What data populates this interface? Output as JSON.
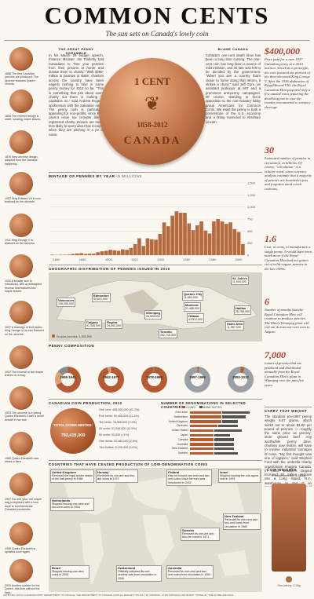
{
  "header": {
    "title": "COMMON CENTS",
    "subtitle": "The sun sets on Canada's lowly coin"
  },
  "coin_captions": [
    "1858 The first Canadian pennies are produced. The obverse features Queen Victoria.",
    "1859 The reverse design is wider, wearing maple leaves.",
    "1876 New obverse design, adapted from the Jamaica halfpenny.",
    "1902 King Edward VII is now featured on the obverse.",
    "1911 King George V is featured on the obverse.",
    "1920 A smaller size is introduced, with a redesigned reverse that features two maple leaves.",
    "1937 A redesign of both sides; King George VI is now featured on the obverse.",
    "1937 The reverse is two maple leaves on a twig.",
    "1953 The obverse is a young Queen Elizabeth II with a laurel wreath in her hair.",
    "1965 Queen Elizabeth now wears a tiara.",
    "1967 For one year, the maple twig is replaced with a rock dove to commemorate Canada's centennial.",
    "1990 Queen Elizabeth is updated once again.",
    "2003 Another update for the Queen, this time without the tiara."
  ],
  "scramble": {
    "title": "THE GREAT PENNY SCRAMBLE",
    "text": "In his March 29 budget speech, Finance Minister Jim Flaherty told Canadians to \"free your pennies from their prisons at home and donate them to charity.\" With $350-million in pennies in stake, charities across the country have been eagerly rushing to rake in some penny money for 2013 so far. \"This is something that just about every charity out there is looking to capitalize on,\" said Andrew Rogers, spokesman with the Salvation Army. The penny rush is particularly appealing for non-profits, since they cannot issue tax receipts like a registered charity. Donors are much less likely to worry about tax receipts when they are pitching in a jar of coins."
  },
  "blame": {
    "title": "BLAME CANADA",
    "text": "Canada's one-cent death blow has been a long time coming. The one-cent coin has long been a source of mild irritation, and its fate was left to be decided by the government. \"When you see a country that's closer to home doing that reform, it strikes a chord,\" said Jeff Gore, an assistant professor at MIT and a prominent anti-penny campaigner. Of course, standing in fierce opposition to the one-industry lobby group Americans for Common Cents. We insist the penny is both a cornerstone of the U.S. economy and a fitting memorial to Abraham Lincoln."
  },
  "big_coin": {
    "line1": "1 CENT",
    "line2": "1858-2012",
    "line3": "CANADA"
  },
  "sidebar": [
    {
      "big": "$400,000",
      "text": "Price paid for a rare 1937 Canadian penny at a 2010 auction. Struck as a prototype, the coin featured the portrait of the then-deceased King George V. After the 1936 abdication of King Edward VIII, the Royal Canadian Mint prepared only a few unused coins featuring the dead king just in case the country encountered a currency shortage."
    },
    {
      "big": "30",
      "text": "Estimated number of pennies in circulation, in billions. Of course, \"circulation\" is a relative word, since currency analysts estimate that a majority of pennies are hoarded in jars and forgotten amid couch cushions."
    },
    {
      "big": "1.6",
      "text": "Cost, in cents, to manufacture a single penny. It would have been much more if the Royal Canadian Mint had not gotten rid of solid-copper pennies in the late 1990s."
    },
    {
      "big": "6",
      "text": "Number of months that the Royal Canadian Mint will continue to produce pennies. The Mint's Winnipeg plant will roll out its last one-cent coin in August."
    },
    {
      "big": "7,000",
      "text": "tonnes of pennies that are produced and distributed annually from the Royal Canadian Mint's plant in Winnipeg over the past five years."
    }
  ],
  "carry": {
    "title": "CARRY THAT WEIGHT",
    "text": "The standard pre-1997 penny weighs 5.67 grams, which works out to about $1.80 per pound of pennies — roughly the same price as grocery-store ground beef. Any worthwhile penny drive, charities now realize, will have to involve industrial tonnages of coins. \"My first thought was one of logistics,\" said Stephen Ford with the umbrella charity organization Imagine Canada. In 1914, Boulder's Dugout recruited 65 million pennies into a Long Island, N.Y., warehouse as part of an innovative direct mail campaign. By meeting, the floor had collapsed."
  },
  "mintage": {
    "title": "MINTAGE OF PENNIES BY YEAR",
    "unit": "IN MILLIONS",
    "ticks": [
      "1,500",
      "1,250",
      "1,000",
      "750",
      "500",
      "250",
      "0"
    ],
    "years": [
      "1860",
      "1880",
      "1900",
      "1920",
      "1940",
      "1960",
      "1980",
      "2000"
    ]
  },
  "chart_data": {
    "type": "bar",
    "title": "MINTAGE OF PENNIES BY YEAR",
    "ylabel": "IN MILLIONS",
    "ylim": [
      0,
      1500
    ],
    "categories": [
      "1858",
      "1870",
      "1880",
      "1890",
      "1900",
      "1910",
      "1915",
      "1920",
      "1925",
      "1930",
      "1935",
      "1940",
      "1942",
      "1945",
      "1948",
      "1950",
      "1952",
      "1955",
      "1958",
      "1960",
      "1962",
      "1964",
      "1966",
      "1967",
      "1968",
      "1970",
      "1972",
      "1974",
      "1976",
      "1978",
      "1980",
      "1982",
      "1984",
      "1986",
      "1988",
      "1990",
      "1992",
      "1994",
      "1996",
      "1998",
      "2000",
      "2002",
      "2004",
      "2006",
      "2008",
      "2010",
      "2012"
    ],
    "values": [
      10,
      5,
      8,
      10,
      12,
      25,
      35,
      40,
      25,
      30,
      30,
      60,
      80,
      90,
      110,
      100,
      90,
      120,
      110,
      150,
      230,
      350,
      190,
      350,
      330,
      320,
      440,
      680,
      600,
      820,
      910,
      880,
      880,
      660,
      520,
      620,
      700,
      510,
      450,
      700,
      750,
      700,
      650,
      680,
      540,
      480,
      230
    ]
  },
  "geo": {
    "title": "GEOGRAPHIC DISTRIBUTION OF PENNIES ISSUED IN 2010",
    "legend": "Surplus pennies: 1,955,500",
    "cities": [
      {
        "name": "Vancouver",
        "value": "106,250,000"
      },
      {
        "name": "Edmonton",
        "value": "52,621,000"
      },
      {
        "name": "Calgary",
        "value": "91,345,000"
      },
      {
        "name": "Regina",
        "value": "24,250,000"
      },
      {
        "name": "Winnipeg",
        "value": "26,500,000"
      },
      {
        "name": "Quebec City",
        "value": "11,650,000"
      },
      {
        "name": "Montreal",
        "value": "21,485,000"
      },
      {
        "name": "Ottawa",
        "value": "47,912,000"
      },
      {
        "name": "Toronto",
        "value": "252,715,000"
      },
      {
        "name": "St. John's",
        "value": "11,918,000"
      },
      {
        "name": "Halifax",
        "value": "26,798,000"
      },
      {
        "name": "Saint John",
        "value": "11,967,000"
      }
    ]
  },
  "composition": {
    "title": "PENNY COMPOSITION",
    "eras": [
      "1908-1941",
      "1942-1977",
      "1978-1996",
      "1997-1999",
      "2000-2012"
    ]
  },
  "production": {
    "title": "CANADIAN COIN PRODUCTION, 2010",
    "total_label": "TOTAL COINS MINTED:",
    "total": "792,415,000",
    "rows": [
      "One cent: 486,000,000 (61.3%)",
      "Five cents: 90,450,000 (11.4%)",
      "Ten cents: 78,505,000 (9.9%)",
      "25 cents: 91,340,000 (11.5%)",
      "50 cents: 50,000 (<1%)",
      "One dollar: 20,965,000 (2.6%)",
      "Two dollars: 5,150,000 (0.6%)"
    ]
  },
  "denoms": {
    "title": "NUMBER OF DENOMINATIONS IN SELECTED COUNTRIES",
    "coins_label": "COINS",
    "notes_label": "BANK NOTES",
    "countries": [
      "Euro zone",
      "Switzerland",
      "United Kingdom",
      "Denmark",
      "United States",
      "Japan",
      "Canada",
      "Australia",
      "New Zealand",
      "Sweden"
    ]
  },
  "ceased": {
    "title": "COUNTRIES THAT HAVE CEASED PRODUCTION OF LOW-DENOMINATION COINS",
    "items": [
      {
        "country": "United Kingdom",
        "text": "Removed the legal tender status of the half-penny in 1984"
      },
      {
        "country": "Norway",
        "text": "Removed its one-øre and two-øre coins in 1972"
      },
      {
        "country": "Finland",
        "text": "Has not issued one-cent and two-cent coins since the euro was introduced in 2002"
      },
      {
        "country": "Israel",
        "text": "Stopped issuing the one-agora coin in 1991"
      },
      {
        "country": "Netherlands",
        "text": "Stopped issuing one-cent and two-cent coins in 2004"
      },
      {
        "country": "New Zealand",
        "text": "Removed its one-cent and two-cent coins from circulation in 1989"
      },
      {
        "country": "Sweden",
        "text": "Removed its one-öre and two-öre coins in 1971"
      },
      {
        "country": "Brazil",
        "text": "Stopped issuing one-cent coins in 2004"
      },
      {
        "country": "Switzerland",
        "text": "Officially withdrew its one-centime coin from circulation in 2006"
      },
      {
        "country": "Australia",
        "text": "Removed its one-cent and two-cent coins from circulation in 1992"
      }
    ]
  },
  "weights": {
    "title": "COIN WEIGHTS",
    "top": "1 million pennies: 2,350kg",
    "bottom": "One penny: 2.35g"
  },
  "footer": "SOURCES: ROYAL CANADIAN MINT; DEPARTMENT OF FINANCE; THE DEPARTMENT OF FINANCE (ANNUAL BUDGET) ON JULY 24; GRAPHIC: JOHN SOPINSKI AND MURAT YÜKSELIR / THE GLOBE AND MAIL"
}
